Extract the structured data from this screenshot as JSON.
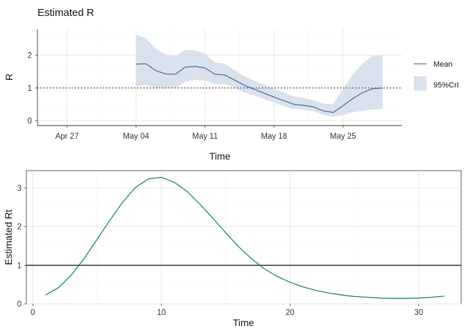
{
  "chart_data": [
    {
      "type": "line",
      "title": "Estimated R",
      "xlabel": "Time",
      "ylabel": "R",
      "x_type": "date",
      "xlim": [
        "2020-04-24",
        "2020-05-31"
      ],
      "ylim": [
        -0.15,
        2.8
      ],
      "x_ticks": [
        {
          "date": "2020-04-27",
          "label": "Apr 27"
        },
        {
          "date": "2020-05-04",
          "label": "May 04"
        },
        {
          "date": "2020-05-11",
          "label": "May 11"
        },
        {
          "date": "2020-05-18",
          "label": "May 18"
        },
        {
          "date": "2020-05-25",
          "label": "May 25"
        }
      ],
      "y_ticks": [
        0,
        1,
        2
      ],
      "reference_line": {
        "y": 1,
        "style": "dotted"
      },
      "grid": true,
      "legend_position": "right",
      "dates": [
        "2020-05-04",
        "2020-05-05",
        "2020-05-06",
        "2020-05-07",
        "2020-05-08",
        "2020-05-09",
        "2020-05-10",
        "2020-05-11",
        "2020-05-12",
        "2020-05-13",
        "2020-05-14",
        "2020-05-15",
        "2020-05-16",
        "2020-05-17",
        "2020-05-18",
        "2020-05-19",
        "2020-05-20",
        "2020-05-21",
        "2020-05-22",
        "2020-05-23",
        "2020-05-24",
        "2020-05-25",
        "2020-05-26",
        "2020-05-27",
        "2020-05-28",
        "2020-05-29"
      ],
      "series": [
        {
          "name": "Mean",
          "kind": "line",
          "color": "#4a72a0",
          "values": [
            1.73,
            1.74,
            1.53,
            1.43,
            1.42,
            1.64,
            1.66,
            1.61,
            1.42,
            1.4,
            1.24,
            1.08,
            0.96,
            0.84,
            0.72,
            0.61,
            0.5,
            0.47,
            0.42,
            0.3,
            0.25,
            0.46,
            0.68,
            0.86,
            0.98,
            1.0
          ]
        },
        {
          "name": "95%CrI",
          "kind": "ribbon",
          "color": "#d9e2ec",
          "lower": [
            1.06,
            1.1,
            1.0,
            0.98,
            1.0,
            1.18,
            1.25,
            1.22,
            1.12,
            1.12,
            1.0,
            0.86,
            0.77,
            0.66,
            0.55,
            0.45,
            0.36,
            0.33,
            0.29,
            0.18,
            0.12,
            0.17,
            0.26,
            0.3,
            0.34,
            0.36
          ],
          "upper": [
            2.62,
            2.52,
            2.2,
            2.02,
            1.98,
            2.17,
            2.15,
            2.05,
            1.78,
            1.74,
            1.54,
            1.36,
            1.22,
            1.1,
            0.98,
            0.86,
            0.74,
            0.69,
            0.63,
            0.52,
            0.5,
            0.98,
            1.42,
            1.76,
            1.98,
            2.02
          ]
        }
      ]
    },
    {
      "type": "line",
      "title": "",
      "xlabel": "Time",
      "ylabel": "Estimated Rt",
      "xlim": [
        -0.5,
        33.3
      ],
      "ylim": [
        0,
        3.45
      ],
      "x_ticks": [
        0,
        10,
        20,
        30
      ],
      "y_ticks": [
        0,
        1,
        2,
        3
      ],
      "reference_line": {
        "y": 1,
        "style": "solid"
      },
      "grid": true,
      "series": [
        {
          "kind": "line",
          "color": "#1a8270",
          "x": [
            1,
            2,
            3,
            4,
            5,
            6,
            7,
            8,
            9,
            10,
            11,
            12,
            13,
            14,
            15,
            16,
            17,
            18,
            19,
            20,
            21,
            22,
            23,
            24,
            25,
            26,
            27,
            28,
            29,
            30,
            31,
            32
          ],
          "values": [
            0.23,
            0.42,
            0.75,
            1.18,
            1.67,
            2.17,
            2.64,
            3.02,
            3.24,
            3.28,
            3.15,
            2.91,
            2.58,
            2.22,
            1.84,
            1.48,
            1.17,
            0.91,
            0.71,
            0.56,
            0.44,
            0.35,
            0.28,
            0.23,
            0.19,
            0.17,
            0.15,
            0.14,
            0.14,
            0.15,
            0.17,
            0.2
          ]
        }
      ]
    }
  ]
}
